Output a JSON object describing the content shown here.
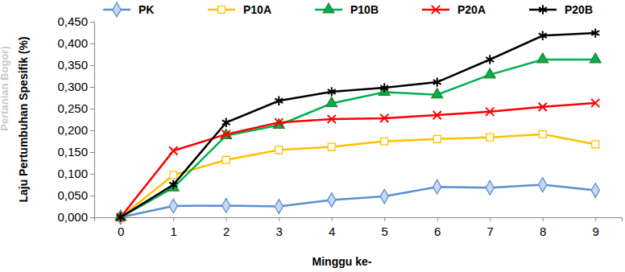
{
  "chart_data": {
    "type": "line",
    "x_label": "Minggu ke-",
    "y_label": "Laju Pertumbuhan Spesifik (%)",
    "annotations": [
      "Pertanian Bogor)"
    ],
    "x": [
      0,
      1,
      2,
      3,
      4,
      5,
      6,
      7,
      8,
      9
    ],
    "xlim": [
      -0.5,
      9.5
    ],
    "xticks": [
      0,
      1,
      2,
      3,
      4,
      5,
      6,
      7,
      8,
      9
    ],
    "ylim": [
      0,
      0.45
    ],
    "yticks": [
      {
        "value": 0,
        "label": "0,000"
      },
      {
        "value": 0.05,
        "label": "0,050"
      },
      {
        "value": 0.1,
        "label": "0,100"
      },
      {
        "value": 0.15,
        "label": "0,150"
      },
      {
        "value": 0.2,
        "label": "0,200"
      },
      {
        "value": 0.25,
        "label": "0,250"
      },
      {
        "value": 0.3,
        "label": "0,300"
      },
      {
        "value": 0.35,
        "label": "0,350"
      },
      {
        "value": 0.4,
        "label": "0,400"
      },
      {
        "value": 0.45,
        "label": "0,450"
      }
    ],
    "grid": false,
    "legend": "top",
    "series": [
      {
        "name": "PK",
        "color": "#5b8fd0",
        "marker": "diamond",
        "line_style": "solid",
        "values": [
          0,
          0.026,
          0.027,
          0.025,
          0.04,
          0.048,
          0.07,
          0.068,
          0.075,
          0.062
        ]
      },
      {
        "name": "P10A",
        "color": "#ffc000",
        "marker": "square",
        "line_style": "solid",
        "values": [
          0,
          0.097,
          0.132,
          0.155,
          0.162,
          0.175,
          0.18,
          0.184,
          0.191,
          0.168
        ]
      },
      {
        "name": "P10B",
        "color": "#00b050",
        "marker": "triangle",
        "line_style": "solid",
        "values": [
          0,
          0.068,
          0.188,
          0.212,
          0.262,
          0.288,
          0.282,
          0.328,
          0.363,
          0.363
        ]
      },
      {
        "name": "P20A",
        "color": "#ff0000",
        "marker": "x",
        "line_style": "solid",
        "values": [
          0,
          0.153,
          0.191,
          0.218,
          0.226,
          0.228,
          0.235,
          0.243,
          0.254,
          0.263
        ]
      },
      {
        "name": "P20B",
        "color": "#000000",
        "marker": "asterisk",
        "line_style": "solid",
        "values": [
          0,
          0.075,
          0.218,
          0.268,
          0.289,
          0.298,
          0.311,
          0.363,
          0.418,
          0.424
        ]
      }
    ]
  }
}
